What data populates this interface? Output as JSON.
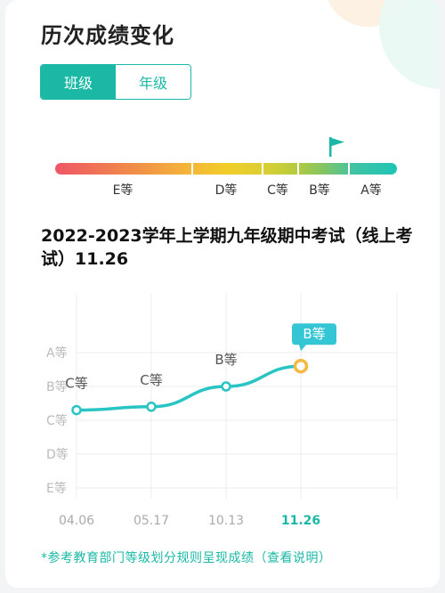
{
  "page_title": "历次成绩变化",
  "toggle": {
    "options": [
      "班级",
      "年级"
    ],
    "selected": "班级"
  },
  "grade_scale": {
    "labels": [
      "E等",
      "D等",
      "C等",
      "B等",
      "A等"
    ],
    "current": "B等"
  },
  "exam_title": "2022-2023学年上学期九年级期中考试（线上考试）11.26",
  "chart_data": {
    "type": "line",
    "y_levels": [
      "E等",
      "D等",
      "C等",
      "B等",
      "A等"
    ],
    "x": [
      "04.06",
      "05.17",
      "10.13",
      "11.26"
    ],
    "series": [
      {
        "values": [
          2.3,
          2.4,
          3.0,
          3.6
        ]
      }
    ],
    "point_labels": [
      "C等",
      "C等",
      "B等",
      "B等"
    ],
    "highlight_index": 3,
    "colors": {
      "line": "#29c4c4",
      "highlight": "#f5b942",
      "label_box": "#35c6d6"
    },
    "grid": true
  },
  "footnote": "*参考教育部门等级划分规则呈现成绩（查看说明）"
}
